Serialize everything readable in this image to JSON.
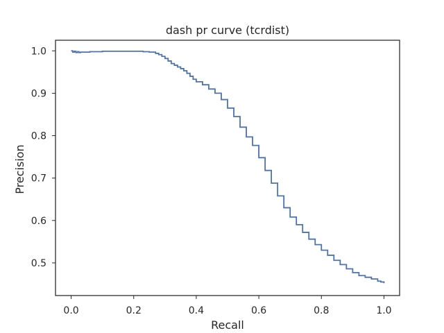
{
  "chart_data": {
    "type": "line",
    "title": "dash pr curve (tcrdist)",
    "xlabel": "Recall",
    "ylabel": "Precision",
    "xlim": [
      -0.05,
      1.05
    ],
    "ylim": [
      0.423,
      1.025
    ],
    "xticks": [
      0.0,
      0.2,
      0.4,
      0.6,
      0.8,
      1.0
    ],
    "xtick_labels": [
      "0.0",
      "0.2",
      "0.4",
      "0.6",
      "0.8",
      "1.0"
    ],
    "yticks": [
      0.5,
      0.6,
      0.7,
      0.8,
      0.9,
      1.0
    ],
    "ytick_labels": [
      "0.5",
      "0.6",
      "0.7",
      "0.8",
      "0.9",
      "1.0"
    ],
    "grid": false,
    "line_color": "#4c72b0",
    "series": [
      {
        "x": [
          0.0,
          0.005,
          0.01,
          0.015,
          0.02,
          0.025,
          0.03,
          0.04,
          0.05,
          0.06,
          0.08,
          0.1,
          0.15,
          0.2,
          0.23,
          0.25,
          0.27,
          0.28,
          0.29,
          0.3,
          0.31,
          0.32,
          0.33,
          0.34,
          0.35,
          0.36,
          0.37,
          0.38,
          0.39,
          0.4,
          0.42,
          0.44,
          0.46,
          0.48,
          0.5,
          0.52,
          0.54,
          0.56,
          0.58,
          0.6,
          0.62,
          0.64,
          0.66,
          0.68,
          0.7,
          0.72,
          0.74,
          0.76,
          0.78,
          0.8,
          0.82,
          0.84,
          0.86,
          0.88,
          0.9,
          0.92,
          0.94,
          0.96,
          0.98,
          0.99,
          1.0
        ],
        "y": [
          1.0,
          0.997,
          0.999,
          0.996,
          0.998,
          0.996,
          0.997,
          0.997,
          0.997,
          0.998,
          0.998,
          0.999,
          0.999,
          0.999,
          0.998,
          0.997,
          0.994,
          0.991,
          0.987,
          0.982,
          0.976,
          0.97,
          0.966,
          0.962,
          0.958,
          0.953,
          0.947,
          0.94,
          0.933,
          0.927,
          0.92,
          0.91,
          0.9,
          0.885,
          0.865,
          0.845,
          0.82,
          0.797,
          0.777,
          0.748,
          0.718,
          0.688,
          0.658,
          0.63,
          0.608,
          0.59,
          0.572,
          0.556,
          0.543,
          0.53,
          0.518,
          0.506,
          0.496,
          0.486,
          0.477,
          0.47,
          0.466,
          0.462,
          0.457,
          0.455,
          0.452
        ]
      }
    ]
  }
}
